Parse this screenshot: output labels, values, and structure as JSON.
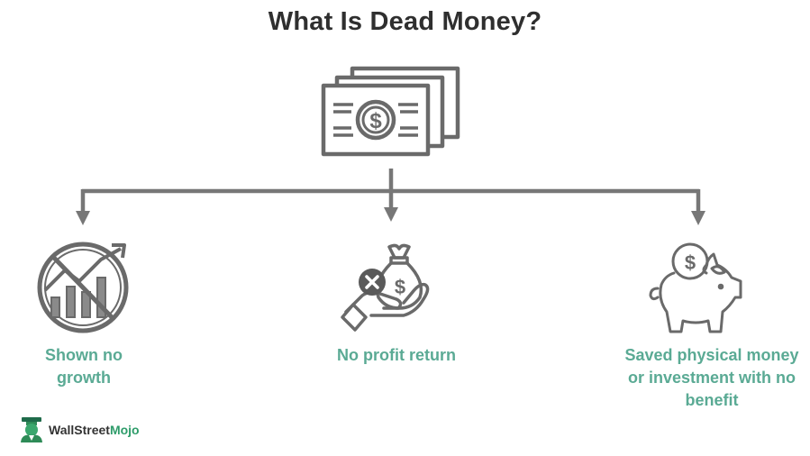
{
  "title": "What Is Dead Money?",
  "items": [
    {
      "label_line1": "Shown no",
      "label_line2": "growth",
      "icon": "no-growth-chart-icon"
    },
    {
      "label_line1": "No profit return",
      "icon": "hand-money-bag-cross-icon"
    },
    {
      "label_line1": "Saved physical money",
      "label_line2": "or investment with no",
      "label_line3": "benefit",
      "icon": "piggy-bank-coin-icon"
    }
  ],
  "brand": {
    "name_part1": "WallStreet",
    "name_part2": "Mojo",
    "icon": "wallstreetmojo-logo-icon"
  },
  "colors": {
    "icon_gray": "#6a6a6a",
    "label_green": "#5aaa94",
    "title": "#2f2f2f"
  }
}
